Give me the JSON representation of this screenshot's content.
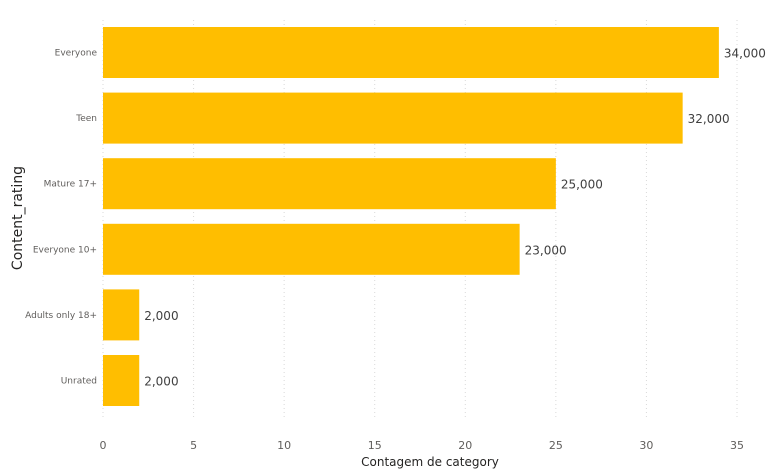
{
  "chart_data": {
    "type": "bar",
    "orientation": "horizontal",
    "categories": [
      "Everyone",
      "Teen",
      "Mature 17+",
      "Everyone 10+",
      "Adults only 18+",
      "Unrated"
    ],
    "values": [
      34000,
      32000,
      25000,
      23000,
      2000,
      2000
    ],
    "data_labels": [
      "34,000",
      "32,000",
      "25,000",
      "23,000",
      "2,000",
      "2,000"
    ],
    "xlabel": "Contagem de category",
    "ylabel": "Content_rating",
    "xlim": [
      0,
      35
    ],
    "xticks": [
      0,
      5,
      10,
      15,
      20,
      25,
      30,
      35
    ],
    "value_scale": 1000,
    "grid": true,
    "bar_color": "#FFBE00"
  }
}
